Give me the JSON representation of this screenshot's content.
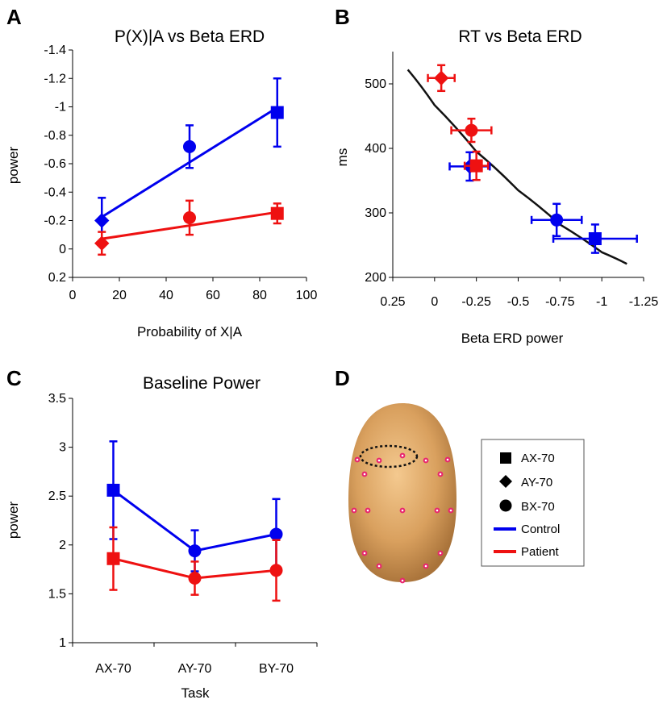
{
  "colors": {
    "control": "#0000ee",
    "patient": "#ee1111",
    "fit": "#111111",
    "axis": "#000000"
  },
  "panels": {
    "A": "A",
    "B": "B",
    "C": "C",
    "D": "D"
  },
  "legend": {
    "items": [
      {
        "marker": "square",
        "label": "AX-70"
      },
      {
        "marker": "diamond",
        "label": "AY-70"
      },
      {
        "marker": "circle",
        "label": "BX-70"
      },
      {
        "line": "control",
        "label": "Control"
      },
      {
        "line": "patient",
        "label": "Patient"
      }
    ]
  },
  "scalp_icon": "head-topographic-electrodes",
  "chart_data": [
    {
      "id": "A",
      "type": "line",
      "title": "P(X)|A vs Beta ERD",
      "xlabel": "Probability of X|A",
      "ylabel": "power",
      "xlim": [
        0,
        100
      ],
      "ylim": [
        0.2,
        -1.4
      ],
      "yinverted": true,
      "xticks": [
        0,
        20,
        40,
        60,
        80,
        100
      ],
      "xtick_labels": [
        "0",
        "20",
        "40",
        "60",
        "80",
        "100"
      ],
      "yticks": [
        -1.4,
        -1.2,
        -1,
        -0.8,
        -0.6,
        -0.4,
        -0.2,
        0,
        0.2
      ],
      "ytick_labels": [
        "-1.4",
        "-1.2",
        "-1",
        "-0.8",
        "-0.6",
        "-0.4",
        "-0.2",
        "0",
        "0.2"
      ],
      "series": [
        {
          "name": "Control",
          "color_key": "control",
          "fit": [
            [
              12,
              -0.22
            ],
            [
              88,
              -1.0
            ]
          ],
          "points": [
            {
              "x": 12.5,
              "y": -0.2,
              "err": 0.16,
              "marker": "diamond"
            },
            {
              "x": 50,
              "y": -0.72,
              "err": 0.15,
              "marker": "circle"
            },
            {
              "x": 87.5,
              "y": -0.96,
              "err": 0.24,
              "marker": "square"
            }
          ]
        },
        {
          "name": "Patient",
          "color_key": "patient",
          "fit": [
            [
              12,
              -0.07
            ],
            [
              88,
              -0.26
            ]
          ],
          "points": [
            {
              "x": 12.5,
              "y": -0.04,
              "err": 0.08,
              "marker": "diamond"
            },
            {
              "x": 50,
              "y": -0.22,
              "err": 0.12,
              "marker": "circle"
            },
            {
              "x": 87.5,
              "y": -0.25,
              "err": 0.07,
              "marker": "square"
            }
          ]
        }
      ]
    },
    {
      "id": "B",
      "type": "scatter",
      "title": "RT vs Beta ERD",
      "xlabel": "Beta ERD power",
      "ylabel": "ms",
      "xlim": [
        0.25,
        -1.25
      ],
      "ylim": [
        200,
        550
      ],
      "xticks": [
        0.25,
        0,
        -0.25,
        -0.5,
        -0.75,
        -1,
        -1.25
      ],
      "xtick_labels": [
        "0.25",
        "0",
        "-0.25",
        "-0.5",
        "-0.75",
        "-1",
        "-1.25"
      ],
      "yticks": [
        200,
        300,
        400,
        500
      ],
      "ytick_labels": [
        "200",
        "300",
        "400",
        "500"
      ],
      "fit_curve": [
        [
          0.16,
          522
        ],
        [
          0,
          467
        ],
        [
          -0.25,
          395
        ],
        [
          -0.5,
          335
        ],
        [
          -0.75,
          282
        ],
        [
          -1,
          239
        ],
        [
          -1.15,
          221
        ]
      ],
      "series": [
        {
          "name": "Control",
          "color_key": "control",
          "points": [
            {
              "x": -0.21,
              "y": 372,
              "xerr": 0.12,
              "yerr": 22,
              "marker": "diamond"
            },
            {
              "x": -0.73,
              "y": 289,
              "xerr": 0.15,
              "yerr": 25,
              "marker": "circle"
            },
            {
              "x": -0.96,
              "y": 260,
              "xerr": 0.25,
              "yerr": 22,
              "marker": "square"
            }
          ]
        },
        {
          "name": "Patient",
          "color_key": "patient",
          "points": [
            {
              "x": -0.04,
              "y": 509,
              "xerr": 0.08,
              "yerr": 20,
              "marker": "diamond"
            },
            {
              "x": -0.22,
              "y": 428,
              "xerr": 0.12,
              "yerr": 18,
              "marker": "circle"
            },
            {
              "x": -0.25,
              "y": 373,
              "xerr": 0.07,
              "yerr": 22,
              "marker": "square"
            }
          ]
        }
      ]
    },
    {
      "id": "C",
      "type": "line",
      "title": "Baseline Power",
      "xlabel": "Task",
      "ylabel": "power",
      "categories": [
        "AX-70",
        "AY-70",
        "BY-70"
      ],
      "ylim": [
        1,
        3.5
      ],
      "yticks": [
        1,
        1.5,
        2,
        2.5,
        3,
        3.5
      ],
      "ytick_labels": [
        "1",
        "1.5",
        "2",
        "2.5",
        "3",
        "3.5"
      ],
      "series": [
        {
          "name": "Control",
          "color_key": "control",
          "values": [
            2.56,
            1.94,
            2.11
          ],
          "err": [
            0.5,
            0.21,
            0.36
          ],
          "markers": [
            "square",
            "circle",
            "circle"
          ]
        },
        {
          "name": "Patient",
          "color_key": "patient",
          "values": [
            1.86,
            1.66,
            1.74
          ],
          "err": [
            0.32,
            0.17,
            0.31
          ],
          "markers": [
            "square",
            "circle",
            "circle"
          ]
        }
      ]
    }
  ]
}
